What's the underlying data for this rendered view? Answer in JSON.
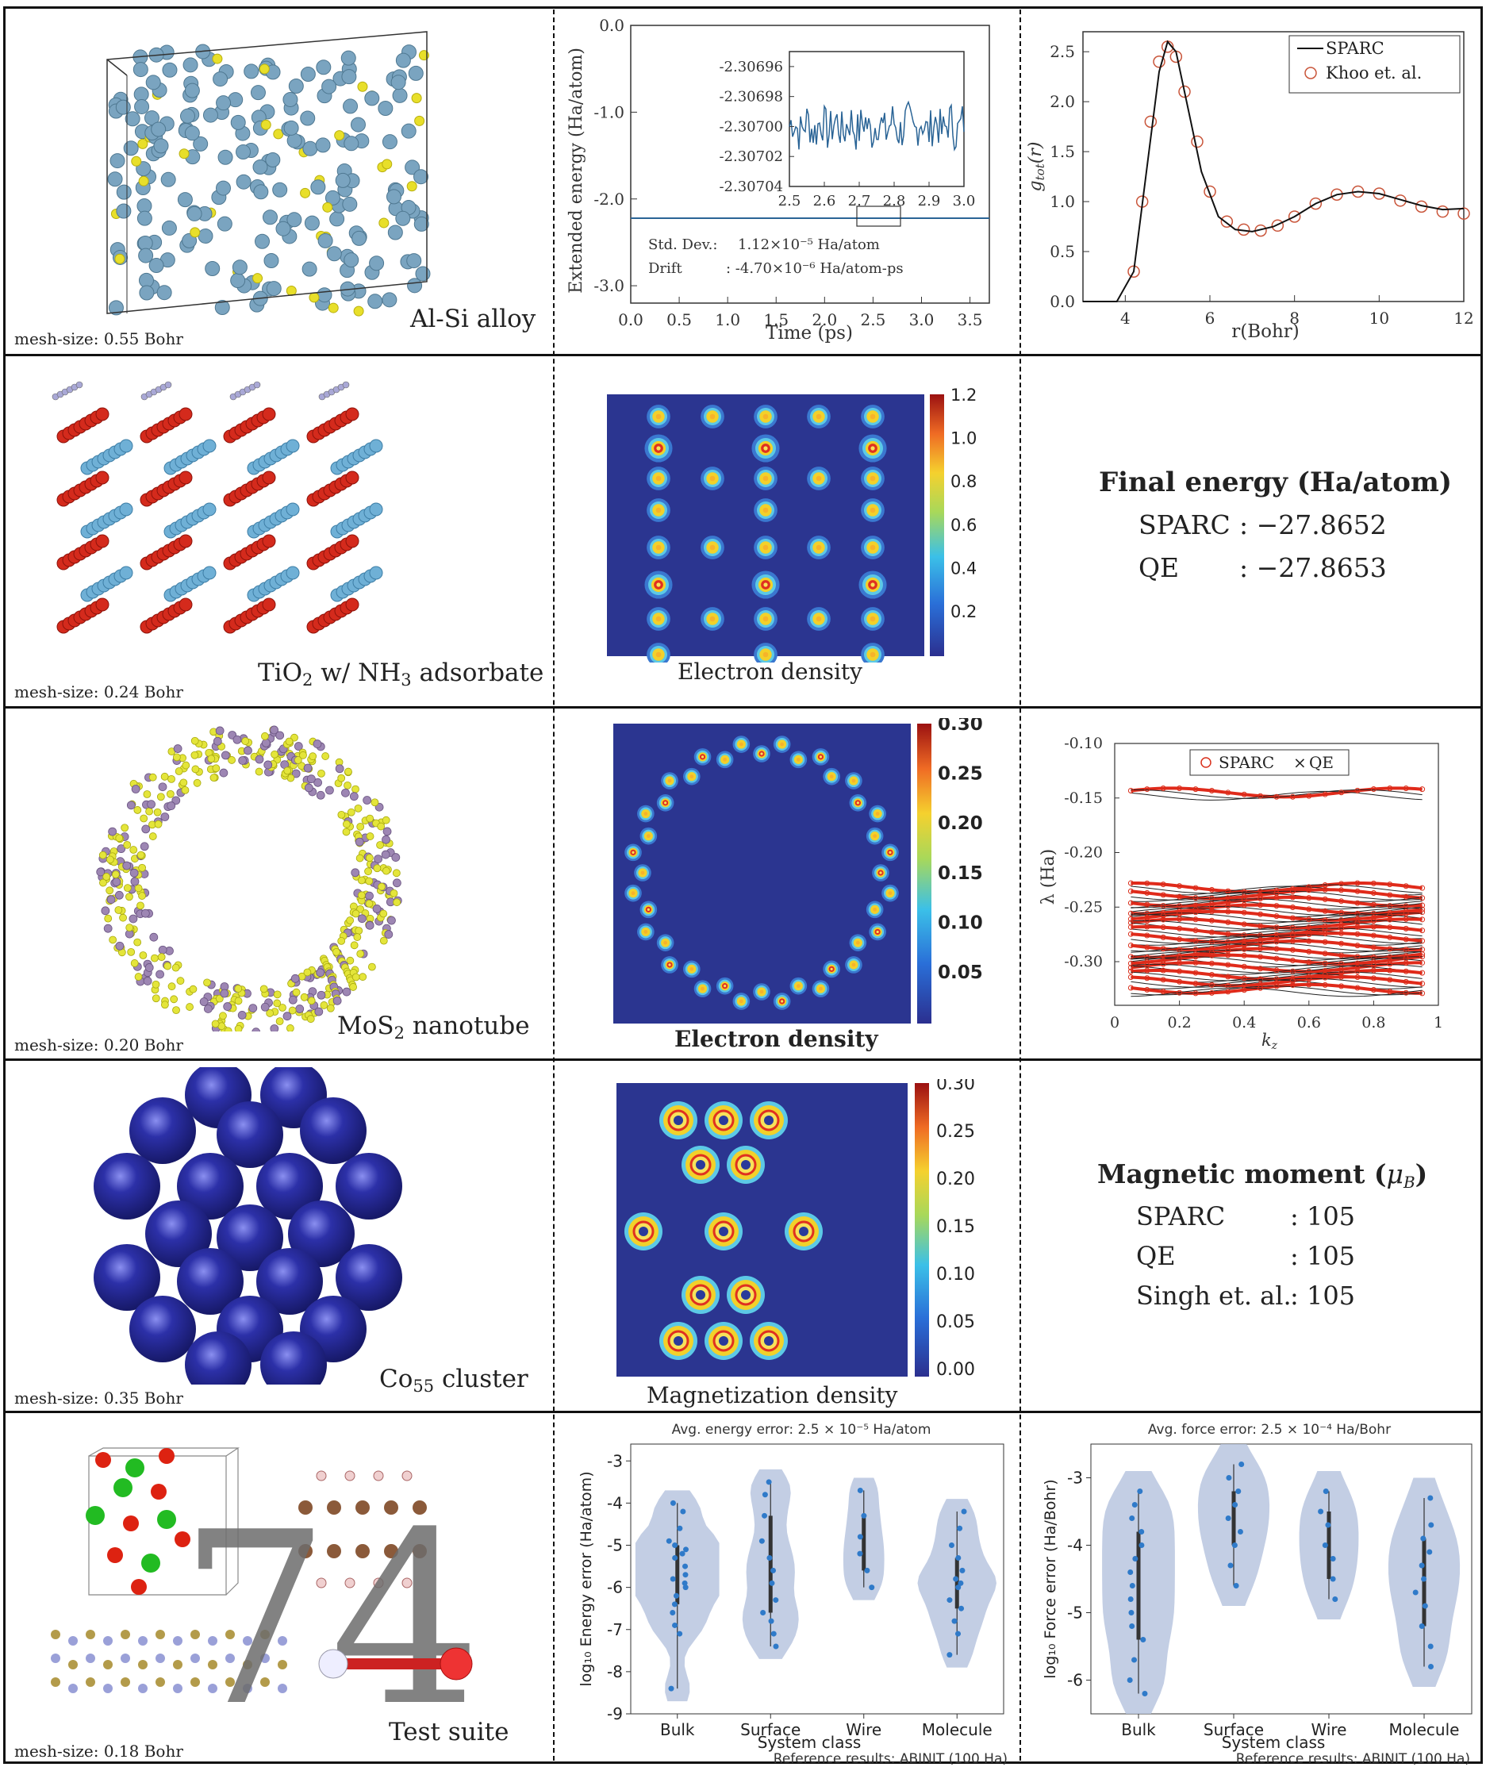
{
  "rows": [
    {
      "system_prefix": "Al-Si alloy",
      "mesh": "mesh-size: 0.55 Bohr"
    },
    {
      "mesh": "mesh-size: 0.24 Bohr",
      "density_label": "Electron density"
    },
    {
      "mesh": "mesh-size: 0.20 Bohr",
      "density_label": "Electron density"
    },
    {
      "mesh": "mesh-size: 0.35 Bohr",
      "density_label": "Magnetization density"
    },
    {
      "system": "Test suite",
      "mesh": "mesh-size: 0.18 Bohr",
      "count": "74"
    }
  ],
  "captions": {
    "tio2_a": "TiO",
    "tio2_b": "2",
    "tio2_c": " w/ NH",
    "tio2_d": "3",
    "tio2_e": " adsorbate",
    "mos2_a": "MoS",
    "mos2_b": "2",
    "mos2_c": " nanotube",
    "co_a": "Co",
    "co_b": "55",
    "co_c": " cluster"
  },
  "final_energy": {
    "title": "Final energy (Ha/atom)",
    "rows": [
      {
        "label": "SPARC",
        "value": ": −27.8652"
      },
      {
        "label": "QE",
        "value": ": −27.8653"
      }
    ]
  },
  "magnetic_moment": {
    "title": "Magnetic moment (",
    "title_sym": "μ",
    "title_sub": "B",
    "title_end": ")",
    "rows": [
      {
        "label": "SPARC",
        "value": ": 105"
      },
      {
        "label": "QE",
        "value": ": 105"
      },
      {
        "label": "Singh et. al.",
        "value": ": 105"
      }
    ]
  },
  "energy_plot": {
    "ylabel": "Extended energy (Ha/atom)",
    "xlabel": "Time (ps)",
    "std_label": "Std. Dev.:",
    "std_value": "1.12×10⁻⁵ Ha/atom",
    "drift_label": "Drift",
    "drift_value": ": -4.70×10⁻⁶ Ha/atom-ps"
  },
  "colorbars": {
    "tio2": [
      "1.20",
      "1.00",
      "0.80",
      "0.60",
      "0.40",
      "0.20"
    ],
    "mos2": [
      "0.30",
      "0.25",
      "0.20",
      "0.15",
      "0.10",
      "0.05"
    ],
    "co55": [
      "0.30",
      "0.25",
      "0.20",
      "0.15",
      "0.10",
      "0.05",
      "0.00"
    ]
  },
  "violin_top": {
    "energy": "Avg. energy error: 2.5 × 10⁻⁵ Ha/atom",
    "force": "Avg. force error: 2.5 × 10⁻⁴ Ha/Bohr",
    "ref": "Reference results: ABINIT (100 Ha)"
  },
  "chart_data": [
    {
      "type": "line",
      "title": "",
      "xlabel": "Time (ps)",
      "ylabel": "Extended energy (Ha/atom)",
      "xlim": [
        0,
        3.7
      ],
      "ylim": [
        -3.2,
        0.0
      ],
      "xticks": [
        "0.0",
        "0.5",
        "1.0",
        "1.5",
        "2.0",
        "2.5",
        "3.0",
        "3.5"
      ],
      "yticks": [
        "0.0",
        "-1.0",
        "-2.0",
        "-3.0"
      ],
      "series": [
        {
          "x": [
            0,
            3.7
          ],
          "values": [
            -2.307,
            -2.307
          ]
        }
      ],
      "inset": {
        "xlim": [
          2.5,
          3.0
        ],
        "ylim": [
          -2.30704,
          -2.30695
        ],
        "xticks": [
          "2.5",
          "2.6",
          "2.7",
          "2.8",
          "2.9",
          "3.0"
        ],
        "yticks": [
          "-2.30696",
          "-2.30698",
          "-2.30700",
          "-2.30702",
          "-2.30704"
        ]
      }
    },
    {
      "type": "line",
      "xlabel": "r(Bohr)",
      "ylabel": "g_tot(r)",
      "xlim": [
        3,
        12
      ],
      "ylim": [
        0,
        2.7
      ],
      "xticks": [
        "4",
        "6",
        "8",
        "10",
        "12"
      ],
      "yticks": [
        "0.0",
        "0.5",
        "1.0",
        "1.5",
        "2.0",
        "2.5"
      ],
      "legend": "top-right",
      "series": [
        {
          "name": "SPARC",
          "x": [
            3.0,
            3.8,
            4.2,
            4.5,
            4.8,
            5.0,
            5.2,
            5.5,
            5.8,
            6.2,
            6.6,
            7.0,
            7.5,
            8.0,
            8.5,
            9.0,
            9.5,
            10.0,
            10.5,
            11.0,
            11.5,
            12.0
          ],
          "values": [
            0.0,
            0.0,
            0.3,
            1.3,
            2.3,
            2.6,
            2.5,
            1.9,
            1.3,
            0.85,
            0.72,
            0.7,
            0.75,
            0.85,
            0.98,
            1.07,
            1.1,
            1.08,
            1.02,
            0.96,
            0.92,
            0.93
          ]
        },
        {
          "name": "Khoo et. al.",
          "x": [
            4.2,
            4.4,
            4.6,
            4.8,
            5.0,
            5.2,
            5.4,
            5.7,
            6.0,
            6.4,
            6.8,
            7.2,
            7.6,
            8.0,
            8.5,
            9.0,
            9.5,
            10.0,
            10.5,
            11.0,
            11.5,
            12.0
          ],
          "values": [
            0.3,
            1.0,
            1.8,
            2.4,
            2.55,
            2.45,
            2.1,
            1.6,
            1.1,
            0.8,
            0.72,
            0.71,
            0.76,
            0.85,
            0.98,
            1.07,
            1.1,
            1.08,
            1.01,
            0.95,
            0.9,
            0.88
          ]
        }
      ]
    },
    {
      "type": "scatter",
      "xlabel": "k_z",
      "ylabel": "λ (Ha)",
      "xlim": [
        0,
        1
      ],
      "ylim": [
        -0.34,
        -0.1
      ],
      "xticks": [
        "0",
        "0.2",
        "0.4",
        "0.6",
        "0.8",
        "1"
      ],
      "yticks": [
        "-0.10",
        "-0.15",
        "-0.20",
        "-0.25",
        "-0.30"
      ],
      "legend": "top-center",
      "series": [
        {
          "name": "SPARC"
        },
        {
          "name": "QE"
        }
      ],
      "bands_y": [
        -0.145,
        -0.232,
        -0.238,
        -0.245,
        -0.252,
        -0.258,
        -0.265,
        -0.272,
        -0.278,
        -0.285,
        -0.292,
        -0.298,
        -0.305,
        -0.312,
        -0.318,
        -0.325
      ]
    },
    {
      "type": "violin",
      "title": "Avg. energy error: 2.5 × 10⁻⁵ Ha/atom",
      "xlabel": "System class",
      "ylabel": "log₁₀ Energy error (Ha/atom)",
      "ylim": [
        -9,
        -2.6
      ],
      "categories": [
        "Bulk",
        "Surface",
        "Wire",
        "Molecule"
      ],
      "yticks": [
        "-3",
        "-4",
        "-5",
        "-6",
        "-7",
        "-8",
        "-9"
      ],
      "series": [
        {
          "name": "Bulk",
          "values": [
            -4.0,
            -4.2,
            -4.6,
            -4.9,
            -5.0,
            -5.1,
            -5.2,
            -5.3,
            -5.5,
            -5.7,
            -5.8,
            -5.9,
            -6.0,
            -6.2,
            -6.4,
            -6.6,
            -6.9,
            -7.1,
            -8.4
          ]
        },
        {
          "name": "Surface",
          "values": [
            -3.5,
            -3.8,
            -4.3,
            -4.9,
            -5.3,
            -5.6,
            -5.9,
            -6.3,
            -6.6,
            -6.8,
            -7.1,
            -7.4
          ]
        },
        {
          "name": "Wire",
          "values": [
            -3.7,
            -4.3,
            -4.8,
            -5.2,
            -5.6,
            -6.0
          ]
        },
        {
          "name": "Molecule",
          "values": [
            -4.2,
            -4.6,
            -5.0,
            -5.3,
            -5.6,
            -5.8,
            -5.9,
            -6.0,
            -6.3,
            -6.5,
            -6.8,
            -7.1,
            -7.6
          ]
        }
      ]
    },
    {
      "type": "violin",
      "title": "Avg. force error: 2.5 × 10⁻⁴ Ha/Bohr",
      "xlabel": "System class",
      "ylabel": "log₁₀ Force error (Ha/Bohr)",
      "ylim": [
        -6.5,
        -2.5
      ],
      "categories": [
        "Bulk",
        "Surface",
        "Wire",
        "Molecule"
      ],
      "yticks": [
        "-3",
        "-4",
        "-5",
        "-6"
      ],
      "series": [
        {
          "name": "Bulk",
          "values": [
            -3.2,
            -3.4,
            -3.6,
            -3.8,
            -4.0,
            -4.2,
            -4.4,
            -4.6,
            -4.8,
            -5.0,
            -5.2,
            -5.4,
            -5.7,
            -6.0,
            -6.2
          ]
        },
        {
          "name": "Surface",
          "values": [
            -2.8,
            -3.0,
            -3.2,
            -3.4,
            -3.6,
            -3.8,
            -4.0,
            -4.3,
            -4.6
          ]
        },
        {
          "name": "Wire",
          "values": [
            -3.2,
            -3.5,
            -3.7,
            -4.0,
            -4.2,
            -4.5,
            -4.8
          ]
        },
        {
          "name": "Molecule",
          "values": [
            -3.3,
            -3.7,
            -3.9,
            -4.1,
            -4.3,
            -4.5,
            -4.7,
            -4.9,
            -5.2,
            -5.5,
            -5.8
          ]
        }
      ]
    }
  ]
}
